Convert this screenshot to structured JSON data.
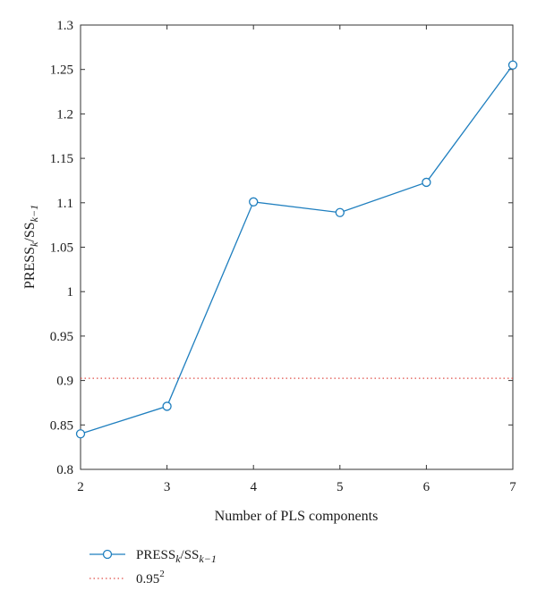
{
  "chart_data": {
    "type": "line",
    "title": "",
    "xlabel": "Number of PLS components",
    "ylabel": {
      "main": "PRESS",
      "sub1": "k",
      "mid": "/SS",
      "sub2": "k−1"
    },
    "xlim": [
      2,
      7
    ],
    "ylim": [
      0.8,
      1.3
    ],
    "x_ticks": [
      "2",
      "3",
      "4",
      "5",
      "6",
      "7"
    ],
    "y_ticks": [
      "0.8",
      "0.85",
      "0.9",
      "0.95",
      "1",
      "1.05",
      "1.1",
      "1.15",
      "1.2",
      "1.25",
      "1.3"
    ],
    "series": [
      {
        "name": "PRESS_k/SS_k-1",
        "color": "#1f7fbf",
        "marker": "circle-open",
        "x": [
          2,
          3,
          4,
          5,
          6,
          7
        ],
        "y": [
          0.84,
          0.871,
          1.101,
          1.089,
          1.123,
          1.255
        ]
      }
    ],
    "reference_line": {
      "name": "0.95^2",
      "y": 0.9025,
      "color": "#e0504a",
      "style": "dotted"
    },
    "legend": {
      "placement": "below-left",
      "series_label": {
        "main": "PRESS",
        "sub1": "k",
        "mid": "/SS",
        "sub2": "k−1"
      },
      "ref_label": {
        "main": "0.95",
        "sup": "2"
      }
    },
    "grid": false
  }
}
